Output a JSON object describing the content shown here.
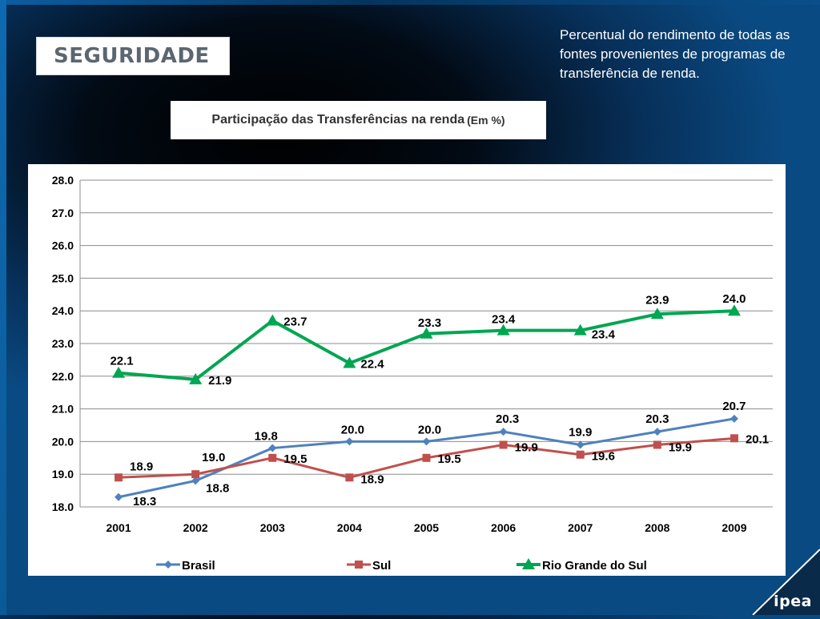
{
  "section": {
    "label": "SEGURIDADE"
  },
  "description": "Percentual do rendimento de todas as fontes provenientes de programas de transferência de renda.",
  "title": {
    "main": "Participação das Transferências na renda",
    "unit": "(Em %)"
  },
  "logo": "ipea",
  "colors": {
    "Brasil": "#4f81bd",
    "Sul": "#c0504d",
    "Rio Grande do Sul": "#00a651",
    "grid": "#8c8c8c"
  },
  "chart_data": {
    "type": "line",
    "title": "Participação das Transferências na renda (Em %)",
    "xlabel": "",
    "ylabel": "",
    "x": [
      "2001",
      "2002",
      "2003",
      "2004",
      "2005",
      "2006",
      "2007",
      "2008",
      "2009"
    ],
    "ylim": [
      18.0,
      28.0
    ],
    "yticks": [
      "18.0",
      "19.0",
      "20.0",
      "21.0",
      "22.0",
      "23.0",
      "24.0",
      "25.0",
      "26.0",
      "27.0",
      "28.0"
    ],
    "grid": true,
    "legend_position": "bottom",
    "series": [
      {
        "name": "Brasil",
        "marker": "diamond",
        "values": [
          18.3,
          18.8,
          19.8,
          20.0,
          20.0,
          20.3,
          19.9,
          20.3,
          20.7
        ],
        "labels": [
          "18.3",
          "18.8",
          "19.8",
          "20.0",
          "20.0",
          "20.3",
          "19.9",
          "20.3",
          "20.7"
        ]
      },
      {
        "name": "Sul",
        "marker": "square",
        "values": [
          18.9,
          19.0,
          19.5,
          18.9,
          19.5,
          19.9,
          19.6,
          19.9,
          20.1
        ],
        "labels": [
          "18.9",
          "19.0",
          "19.5",
          "18.9",
          "19.5",
          "19.9",
          "19.6",
          "19.9",
          "20.1"
        ]
      },
      {
        "name": "Rio Grande do Sul",
        "marker": "triangle",
        "values": [
          22.1,
          21.9,
          23.7,
          22.4,
          23.3,
          23.4,
          23.4,
          23.9,
          24.0
        ],
        "labels": [
          "22.1",
          "21.9",
          "23.7",
          "22.4",
          "23.3",
          "23.4",
          "23.4",
          "23.9",
          "24.0"
        ]
      }
    ]
  }
}
